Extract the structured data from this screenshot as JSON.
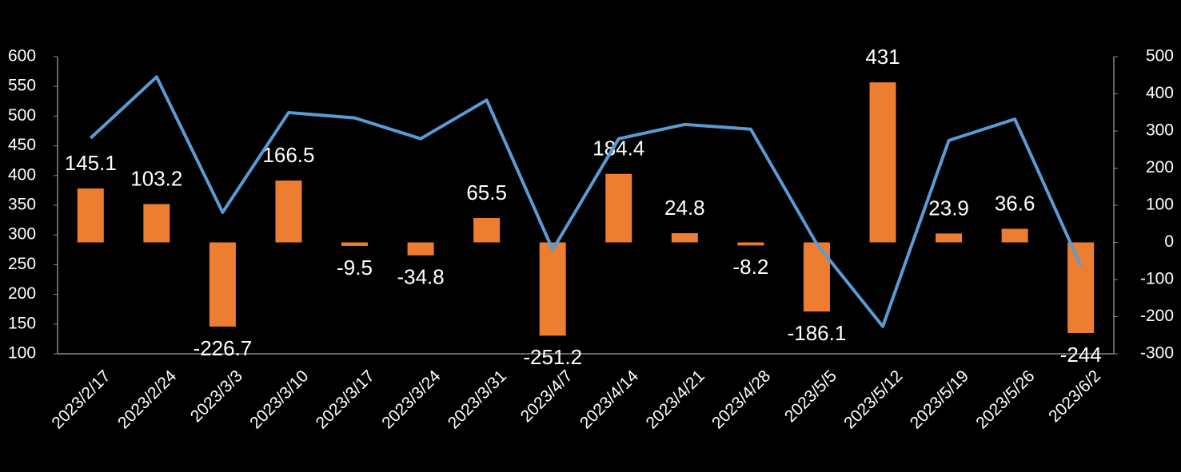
{
  "chart_data": {
    "type": "combo",
    "categories": [
      "2023/2/17",
      "2023/2/24",
      "2023/3/3",
      "2023/3/10",
      "2023/3/17",
      "2023/3/24",
      "2023/3/31",
      "2023/4/7",
      "2023/4/14",
      "2023/4/21",
      "2023/4/28",
      "2023/5/5",
      "2023/5/12",
      "2023/5/19",
      "2023/5/26",
      "2023/6/2"
    ],
    "series": [
      {
        "type": "bar",
        "axis": "y2",
        "color": "#ed7d31",
        "values": [
          145.1,
          103.2,
          -226.7,
          166.5,
          -9.5,
          -34.8,
          65.5,
          -251.2,
          184.4,
          24.8,
          -8.2,
          -186.1,
          431,
          23.9,
          36.6,
          -244
        ]
      },
      {
        "type": "line",
        "axis": "y",
        "color": "#5b9bd5",
        "values": [
          463,
          566,
          338,
          506,
          497,
          462,
          527,
          275,
          462,
          486,
          478,
          285,
          146,
          459,
          495,
          248
        ]
      }
    ],
    "ylim": [
      100,
      600
    ],
    "yticks": [
      100,
      150,
      200,
      250,
      300,
      350,
      400,
      450,
      500,
      550,
      600
    ],
    "y2lim": [
      -300,
      500
    ],
    "y2ticks": [
      -300,
      -200,
      -100,
      0,
      100,
      200,
      300,
      400,
      500
    ]
  }
}
